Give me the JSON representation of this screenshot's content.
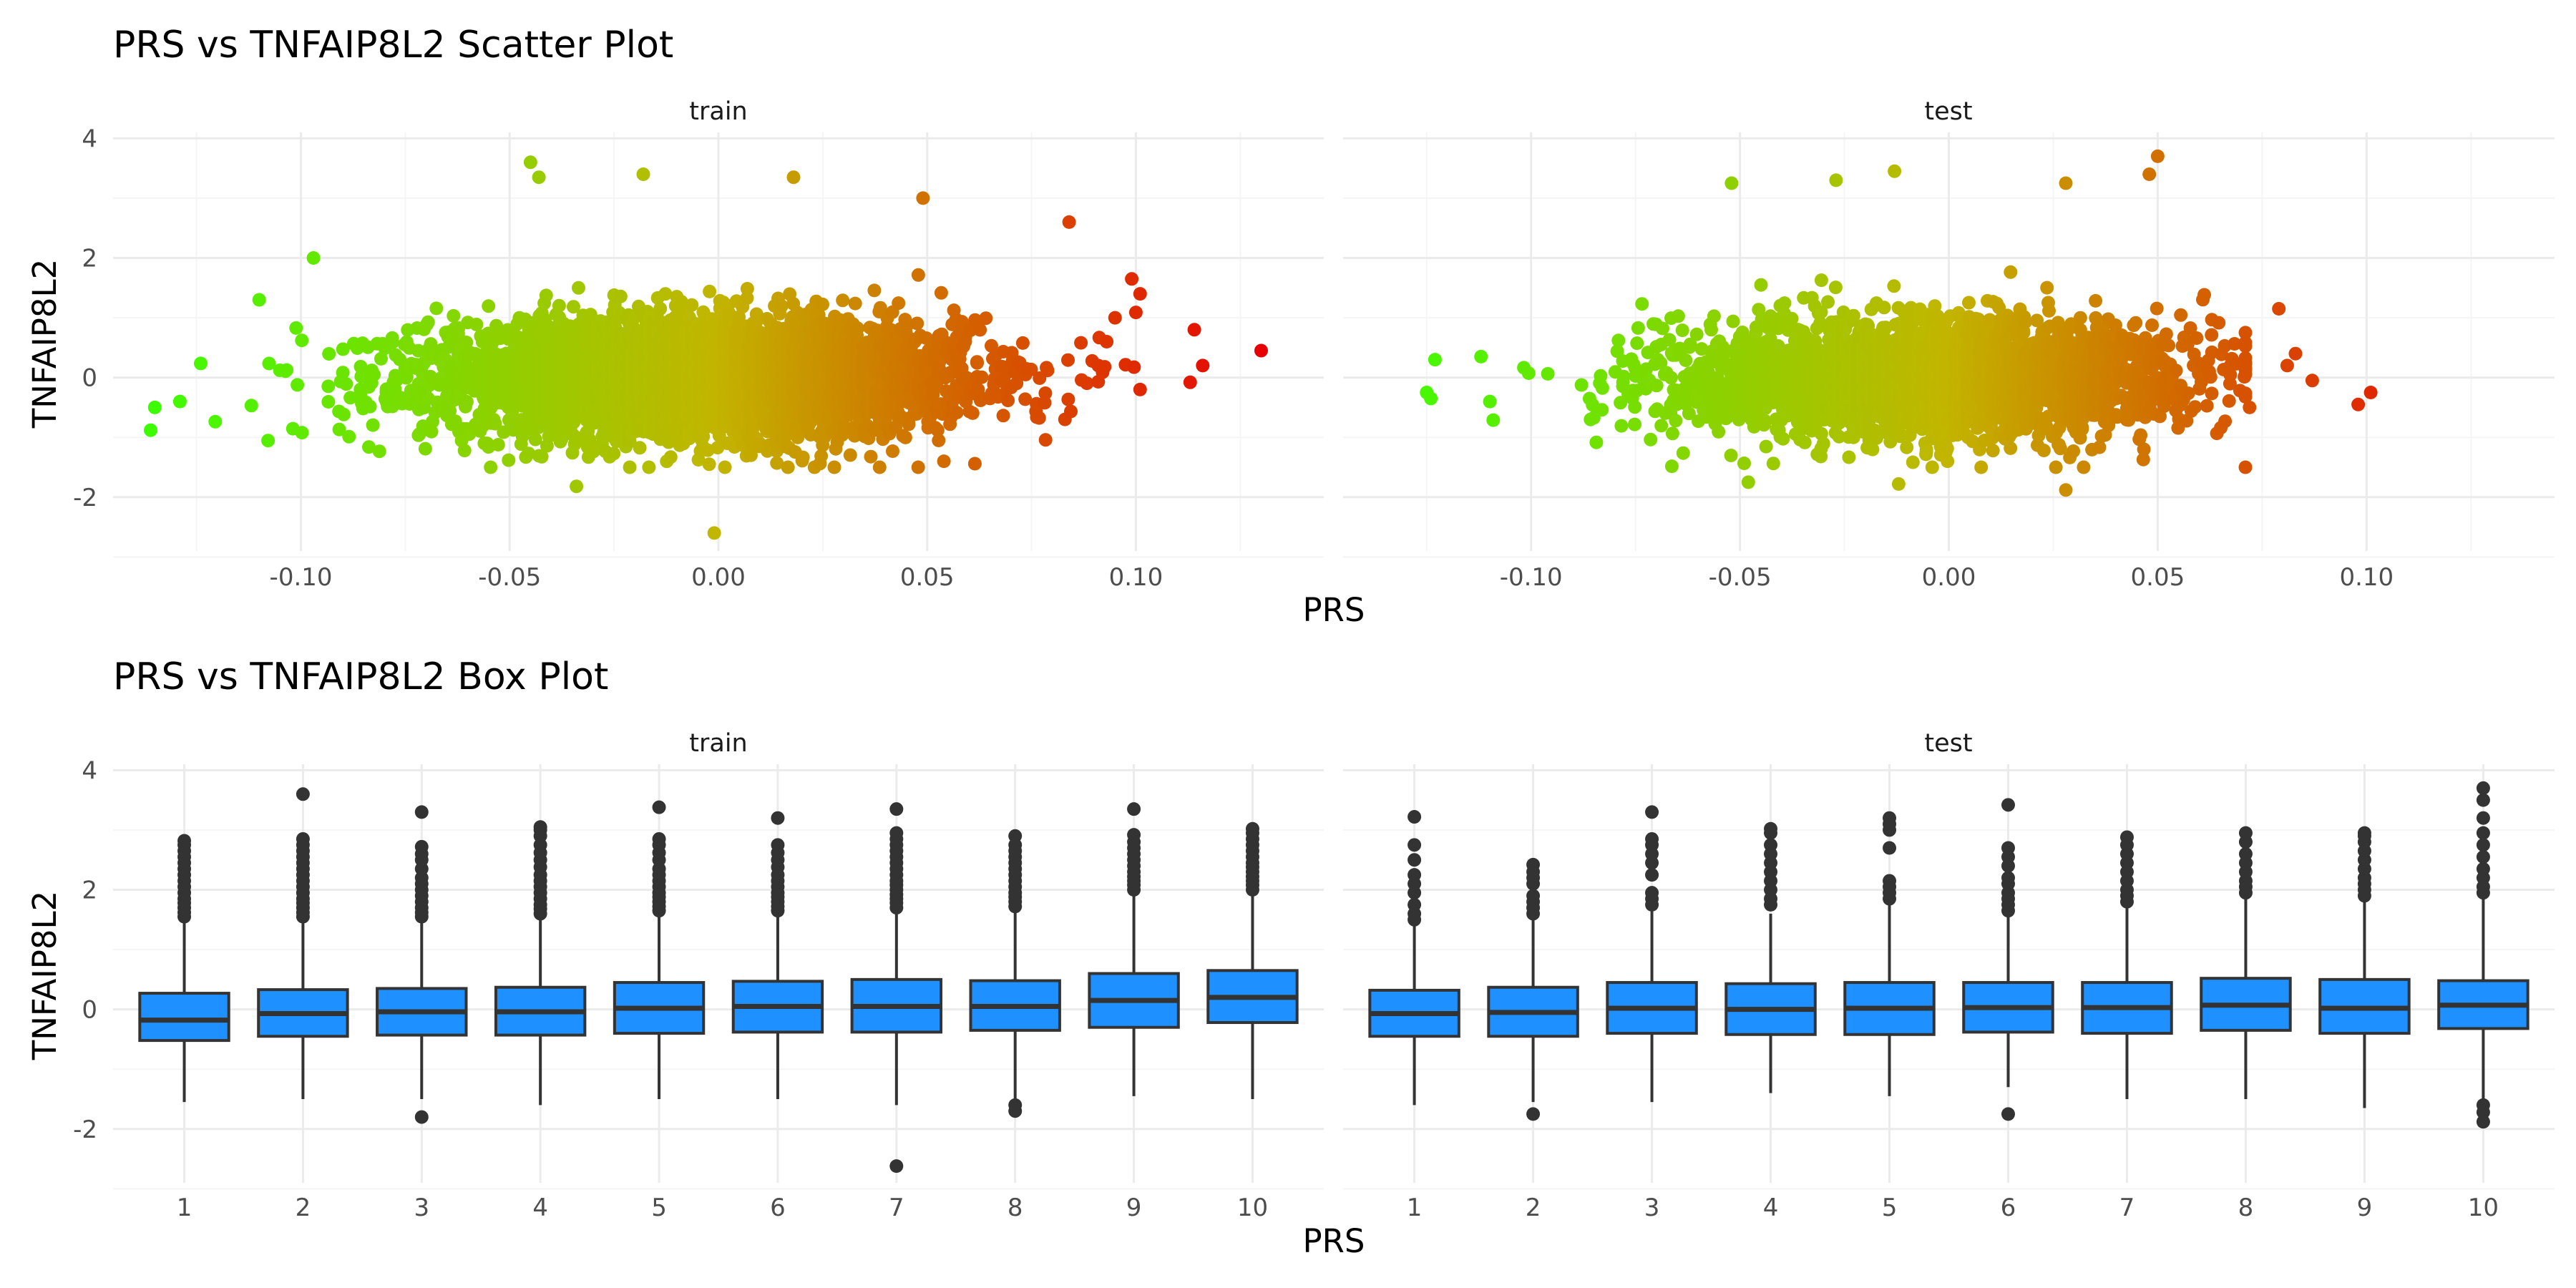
{
  "colors": {
    "grid_major": "#ebebeb",
    "grid_minor": "#f5f5f5",
    "box_fill": "#1e90ff",
    "box_line": "#333333",
    "outlier": "#333333",
    "low": "#39ff00",
    "mid": "#c2b500",
    "high": "#e80000"
  },
  "chart_data": [
    {
      "type": "scatter",
      "title": "PRS vs TNFAIP8L2 Scatter Plot",
      "xlabel": "PRS",
      "ylabel": "TNFAIP8L2",
      "panels": [
        "train",
        "test"
      ],
      "xlim": [
        -0.145,
        0.145
      ],
      "ylim": [
        -2.9,
        4.1
      ],
      "xticks": [
        -0.1,
        -0.05,
        0.0,
        0.05,
        0.1
      ],
      "xtick_labels": [
        "-0.10",
        "-0.05",
        "0.00",
        "0.05",
        "0.10"
      ],
      "yticks": [
        -2,
        0,
        2,
        4
      ],
      "ytick_labels": [
        "-2",
        "0",
        "2",
        "4"
      ],
      "color_by": "PRS",
      "color_scale": [
        "#39ff00",
        "#c2b500",
        "#e80000"
      ],
      "color_domain": [
        -0.14,
        0.0,
        0.13
      ],
      "train": {
        "bulk": {
          "x_mean": -0.005,
          "x_sd": 0.032,
          "y_mean": 0.0,
          "y_sd": 0.5
        },
        "x_range": [
          -0.136,
          0.13
        ],
        "y_range": [
          -2.6,
          3.6
        ],
        "extreme_points": [
          {
            "x": 0.13,
            "y": 0.45
          },
          {
            "x": 0.116,
            "y": 0.2
          },
          {
            "x": 0.114,
            "y": 0.8
          },
          {
            "x": 0.113,
            "y": -0.08
          },
          {
            "x": 0.101,
            "y": 1.4
          },
          {
            "x": 0.099,
            "y": 1.65
          },
          {
            "x": 0.101,
            "y": -0.2
          },
          {
            "x": 0.095,
            "y": 1.0
          },
          {
            "x": 0.093,
            "y": 0.6
          },
          {
            "x": 0.091,
            "y": 0.2
          },
          {
            "x": 0.084,
            "y": 2.6
          },
          {
            "x": 0.083,
            "y": -0.7
          },
          {
            "x": -0.136,
            "y": -0.88
          },
          {
            "x": -0.135,
            "y": -0.5
          },
          {
            "x": -0.129,
            "y": -0.4
          },
          {
            "x": -0.097,
            "y": 2.0
          },
          {
            "x": -0.11,
            "y": 1.3
          },
          {
            "x": -0.045,
            "y": 3.6
          },
          {
            "x": -0.043,
            "y": 3.35
          },
          {
            "x": -0.018,
            "y": 3.4
          },
          {
            "x": 0.018,
            "y": 3.35
          },
          {
            "x": -0.001,
            "y": -2.6
          },
          {
            "x": -0.034,
            "y": -1.82
          },
          {
            "x": 0.049,
            "y": 3.0
          },
          {
            "x": 0.054,
            "y": -1.4
          }
        ]
      },
      "test": {
        "bulk": {
          "x_mean": -0.005,
          "x_sd": 0.031,
          "y_mean": 0.0,
          "y_sd": 0.5
        },
        "x_range": [
          -0.125,
          0.101
        ],
        "y_range": [
          -1.9,
          3.7
        ],
        "extreme_points": [
          {
            "x": 0.101,
            "y": -0.25
          },
          {
            "x": 0.098,
            "y": -0.45
          },
          {
            "x": 0.087,
            "y": -0.05
          },
          {
            "x": 0.083,
            "y": 0.4
          },
          {
            "x": 0.081,
            "y": 0.2
          },
          {
            "x": 0.079,
            "y": 1.15
          },
          {
            "x": 0.05,
            "y": 3.7
          },
          {
            "x": 0.048,
            "y": 3.4
          },
          {
            "x": -0.125,
            "y": -0.25
          },
          {
            "x": -0.124,
            "y": -0.35
          },
          {
            "x": -0.123,
            "y": 0.3
          },
          {
            "x": -0.112,
            "y": 0.35
          },
          {
            "x": -0.052,
            "y": 3.25
          },
          {
            "x": -0.027,
            "y": 3.3
          },
          {
            "x": -0.013,
            "y": 3.45
          },
          {
            "x": 0.028,
            "y": 3.25
          },
          {
            "x": 0.028,
            "y": -1.88
          },
          {
            "x": -0.012,
            "y": -1.78
          },
          {
            "x": -0.048,
            "y": -1.75
          },
          {
            "x": 0.072,
            "y": -0.5
          }
        ]
      }
    },
    {
      "type": "box",
      "title": "PRS vs TNFAIP8L2 Box Plot",
      "xlabel": "PRS",
      "ylabel": "TNFAIP8L2",
      "panels": [
        "train",
        "test"
      ],
      "categories": [
        "1",
        "2",
        "3",
        "4",
        "5",
        "6",
        "7",
        "8",
        "9",
        "10"
      ],
      "ylim": [
        -2.9,
        4.1
      ],
      "yticks": [
        -2,
        0,
        2,
        4
      ],
      "ytick_labels": [
        "-2",
        "0",
        "2",
        "4"
      ],
      "train": [
        {
          "cat": "1",
          "min": -1.55,
          "q1": -0.52,
          "median": -0.18,
          "q3": 0.27,
          "max": 1.45,
          "outliers": [
            1.55,
            1.62,
            1.7,
            1.78,
            1.85,
            1.95,
            2.05,
            2.15,
            2.25,
            2.35,
            2.45,
            2.55,
            2.65,
            2.75,
            2.82
          ]
        },
        {
          "cat": "2",
          "min": -1.5,
          "q1": -0.45,
          "median": -0.07,
          "q3": 0.33,
          "max": 1.48,
          "outliers": [
            1.55,
            1.62,
            1.7,
            1.78,
            1.85,
            1.95,
            2.05,
            2.15,
            2.25,
            2.35,
            2.45,
            2.55,
            2.65,
            2.75,
            2.85,
            3.6
          ]
        },
        {
          "cat": "3",
          "min": -1.5,
          "q1": -0.43,
          "median": -0.04,
          "q3": 0.35,
          "max": 1.5,
          "outliers": [
            1.55,
            1.62,
            1.7,
            1.8,
            1.9,
            2.0,
            2.1,
            2.2,
            2.35,
            2.5,
            2.6,
            2.72,
            3.3,
            -1.8
          ]
        },
        {
          "cat": "4",
          "min": -1.6,
          "q1": -0.43,
          "median": -0.04,
          "q3": 0.37,
          "max": 1.55,
          "outliers": [
            1.6,
            1.68,
            1.75,
            1.85,
            1.95,
            2.05,
            2.15,
            2.25,
            2.38,
            2.5,
            2.62,
            2.75,
            2.9,
            3.0,
            3.05
          ]
        },
        {
          "cat": "5",
          "min": -1.5,
          "q1": -0.4,
          "median": 0.02,
          "q3": 0.45,
          "max": 1.58,
          "outliers": [
            1.65,
            1.72,
            1.8,
            1.88,
            1.95,
            2.05,
            2.15,
            2.25,
            2.35,
            2.5,
            2.62,
            2.75,
            2.85,
            3.38
          ]
        },
        {
          "cat": "6",
          "min": -1.5,
          "q1": -0.38,
          "median": 0.05,
          "q3": 0.47,
          "max": 1.6,
          "outliers": [
            1.65,
            1.72,
            1.8,
            1.88,
            1.95,
            2.05,
            2.15,
            2.25,
            2.38,
            2.5,
            2.62,
            2.75,
            3.2
          ]
        },
        {
          "cat": "7",
          "min": -1.6,
          "q1": -0.38,
          "median": 0.05,
          "q3": 0.5,
          "max": 1.65,
          "outliers": [
            1.7,
            1.78,
            1.85,
            1.92,
            2.0,
            2.08,
            2.15,
            2.25,
            2.35,
            2.45,
            2.55,
            2.65,
            2.75,
            2.85,
            2.95,
            3.35,
            -2.62
          ]
        },
        {
          "cat": "8",
          "min": -1.5,
          "q1": -0.35,
          "median": 0.05,
          "q3": 0.48,
          "max": 1.68,
          "outliers": [
            1.72,
            1.8,
            1.88,
            1.95,
            2.05,
            2.15,
            2.25,
            2.35,
            2.45,
            2.55,
            2.65,
            2.75,
            2.9,
            -1.6,
            -1.7
          ]
        },
        {
          "cat": "9",
          "min": -1.45,
          "q1": -0.3,
          "median": 0.15,
          "q3": 0.6,
          "max": 1.95,
          "outliers": [
            2.0,
            2.08,
            2.15,
            2.22,
            2.3,
            2.4,
            2.5,
            2.6,
            2.7,
            2.8,
            2.92,
            3.35
          ]
        },
        {
          "cat": "10",
          "min": -1.5,
          "q1": -0.22,
          "median": 0.2,
          "q3": 0.65,
          "max": 1.95,
          "outliers": [
            2.0,
            2.08,
            2.15,
            2.22,
            2.3,
            2.38,
            2.45,
            2.55,
            2.65,
            2.75,
            2.85,
            2.95,
            3.02
          ]
        }
      ],
      "test": [
        {
          "cat": "1",
          "min": -1.6,
          "q1": -0.45,
          "median": -0.07,
          "q3": 0.32,
          "max": 1.4,
          "outliers": [
            1.5,
            1.6,
            1.75,
            1.95,
            2.1,
            2.25,
            2.5,
            2.75,
            3.22
          ]
        },
        {
          "cat": "2",
          "min": -1.55,
          "q1": -0.45,
          "median": -0.05,
          "q3": 0.37,
          "max": 1.5,
          "outliers": [
            1.6,
            1.7,
            1.8,
            1.9,
            2.1,
            2.2,
            2.3,
            2.42,
            -1.75
          ]
        },
        {
          "cat": "3",
          "min": -1.55,
          "q1": -0.4,
          "median": 0.02,
          "q3": 0.45,
          "max": 1.65,
          "outliers": [
            1.75,
            1.85,
            1.95,
            2.25,
            2.45,
            2.6,
            2.75,
            2.85,
            3.3
          ]
        },
        {
          "cat": "4",
          "min": -1.4,
          "q1": -0.42,
          "median": 0.0,
          "q3": 0.43,
          "max": 1.6,
          "outliers": [
            1.75,
            1.85,
            2.0,
            2.15,
            2.3,
            2.45,
            2.6,
            2.75,
            2.95,
            3.02
          ]
        },
        {
          "cat": "5",
          "min": -1.45,
          "q1": -0.42,
          "median": 0.02,
          "q3": 0.45,
          "max": 1.75,
          "outliers": [
            1.85,
            1.95,
            2.05,
            2.15,
            2.7,
            3.0,
            3.1,
            3.2
          ]
        },
        {
          "cat": "6",
          "min": -1.3,
          "q1": -0.38,
          "median": 0.03,
          "q3": 0.45,
          "max": 1.55,
          "outliers": [
            1.65,
            1.75,
            1.85,
            1.95,
            2.1,
            2.2,
            2.4,
            2.55,
            2.7,
            3.42,
            -1.75
          ]
        },
        {
          "cat": "7",
          "min": -1.5,
          "q1": -0.4,
          "median": 0.03,
          "q3": 0.45,
          "max": 1.7,
          "outliers": [
            1.8,
            1.9,
            2.0,
            2.15,
            2.3,
            2.45,
            2.6,
            2.75,
            2.88
          ]
        },
        {
          "cat": "8",
          "min": -1.5,
          "q1": -0.35,
          "median": 0.07,
          "q3": 0.52,
          "max": 1.85,
          "outliers": [
            1.95,
            2.05,
            2.15,
            2.3,
            2.45,
            2.6,
            2.8,
            2.95
          ]
        },
        {
          "cat": "9",
          "min": -1.65,
          "q1": -0.4,
          "median": 0.02,
          "q3": 0.5,
          "max": 1.8,
          "outliers": [
            1.9,
            2.0,
            2.1,
            2.2,
            2.35,
            2.5,
            2.65,
            2.8,
            2.9,
            2.95
          ]
        },
        {
          "cat": "10",
          "min": -1.5,
          "q1": -0.32,
          "median": 0.07,
          "q3": 0.48,
          "max": 1.85,
          "outliers": [
            1.95,
            2.05,
            2.2,
            2.35,
            2.55,
            2.75,
            2.95,
            3.2,
            3.5,
            3.7,
            -1.6,
            -1.72,
            -1.88
          ]
        }
      ]
    }
  ]
}
